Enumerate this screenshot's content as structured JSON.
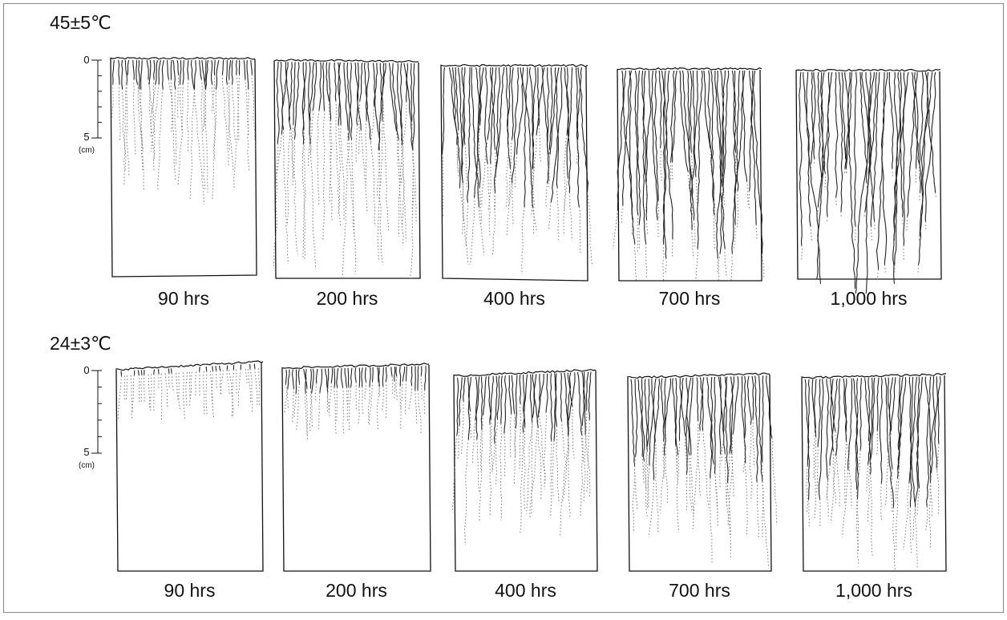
{
  "rows": [
    {
      "title": "45±5℃",
      "scale": {
        "top": "0",
        "bottom": "5",
        "unit": "(cm)"
      },
      "panels": [
        "90 hrs",
        "200 hrs",
        "400 hrs",
        "700 hrs",
        "1,000 hrs"
      ]
    },
    {
      "title": "24±3℃",
      "scale": {
        "top": "0",
        "bottom": "5",
        "unit": "(cm)"
      },
      "panels": [
        "90 hrs",
        "200 hrs",
        "400 hrs",
        "700 hrs",
        "1,000 hrs"
      ]
    }
  ]
}
